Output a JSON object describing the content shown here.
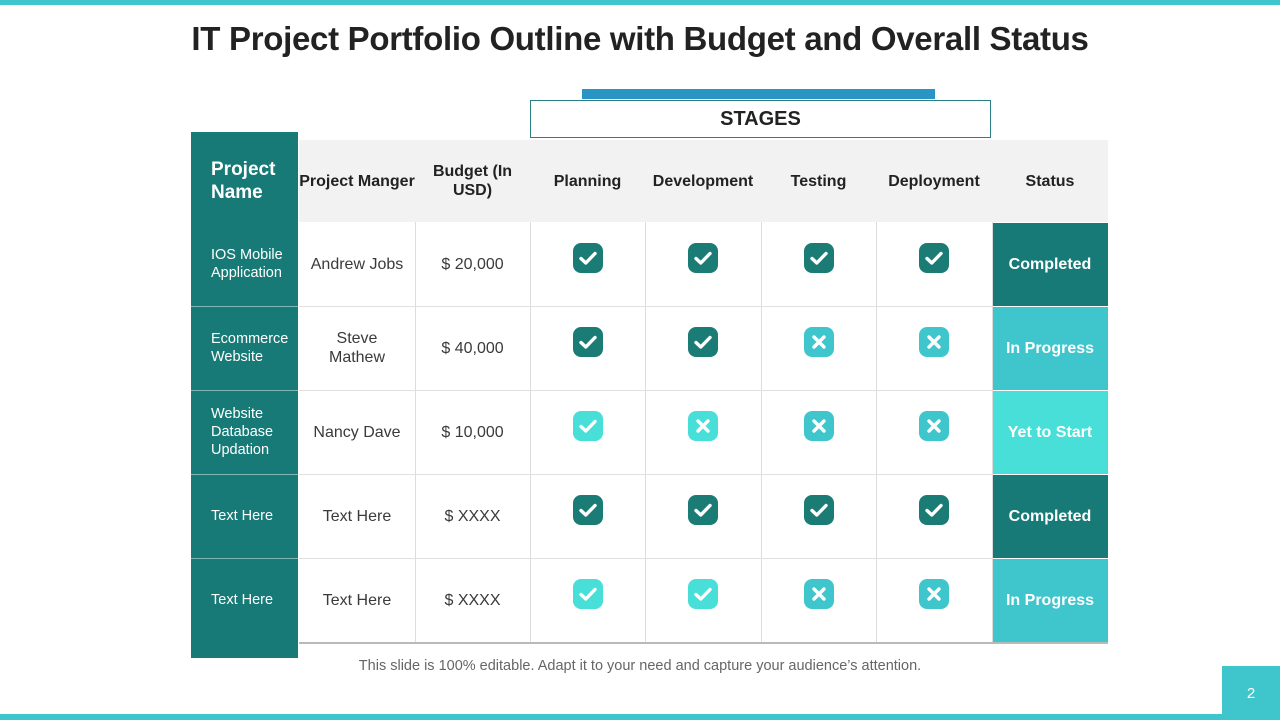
{
  "title": "IT Project Portfolio Outline with Budget and Overall Status",
  "stages_label": "STAGES",
  "headers": {
    "project_name": "Project Name",
    "manager": "Project Manger",
    "budget": "Budget (In USD)",
    "planning": "Planning",
    "development": "Development",
    "testing": "Testing",
    "deployment": "Deployment",
    "status": "Status"
  },
  "rows": [
    {
      "name": "IOS Mobile Application",
      "manager": "Andrew Jobs",
      "budget": "$ 20,000",
      "stages": [
        "check-dark",
        "check-dark",
        "check-dark",
        "check-dark"
      ],
      "status": "Completed"
    },
    {
      "name": "Ecommerce Website",
      "manager": "Steve Mathew",
      "budget": "$ 40,000",
      "stages": [
        "check-dark",
        "check-dark",
        "cross-mid",
        "cross-mid"
      ],
      "status": "In Progress"
    },
    {
      "name": "Website Database Updation",
      "manager": "Nancy Dave",
      "budget": "$ 10,000",
      "stages": [
        "check-light",
        "cross-light",
        "cross-mid",
        "cross-mid"
      ],
      "status": "Yet to Start"
    },
    {
      "name": "Text Here",
      "manager": "Text Here",
      "budget": "$ XXXX",
      "stages": [
        "check-dark",
        "check-dark",
        "check-dark",
        "check-dark"
      ],
      "status": "Completed"
    },
    {
      "name": "Text Here",
      "manager": "Text Here",
      "budget": "$ XXXX",
      "stages": [
        "check-light",
        "check-light",
        "cross-mid",
        "cross-mid"
      ],
      "status": "In Progress"
    }
  ],
  "status_colors": {
    "Completed": "#177a76",
    "In Progress": "#3ec6cc",
    "Yet to Start": "#47dfd8"
  },
  "icon_colors": {
    "dark": "#1b7c76",
    "mid": "#3ec6cc",
    "light": "#47dfd8"
  },
  "footnote": "This slide is 100% editable. Adapt it to your need and capture your audience’s attention.",
  "page_number": "2"
}
